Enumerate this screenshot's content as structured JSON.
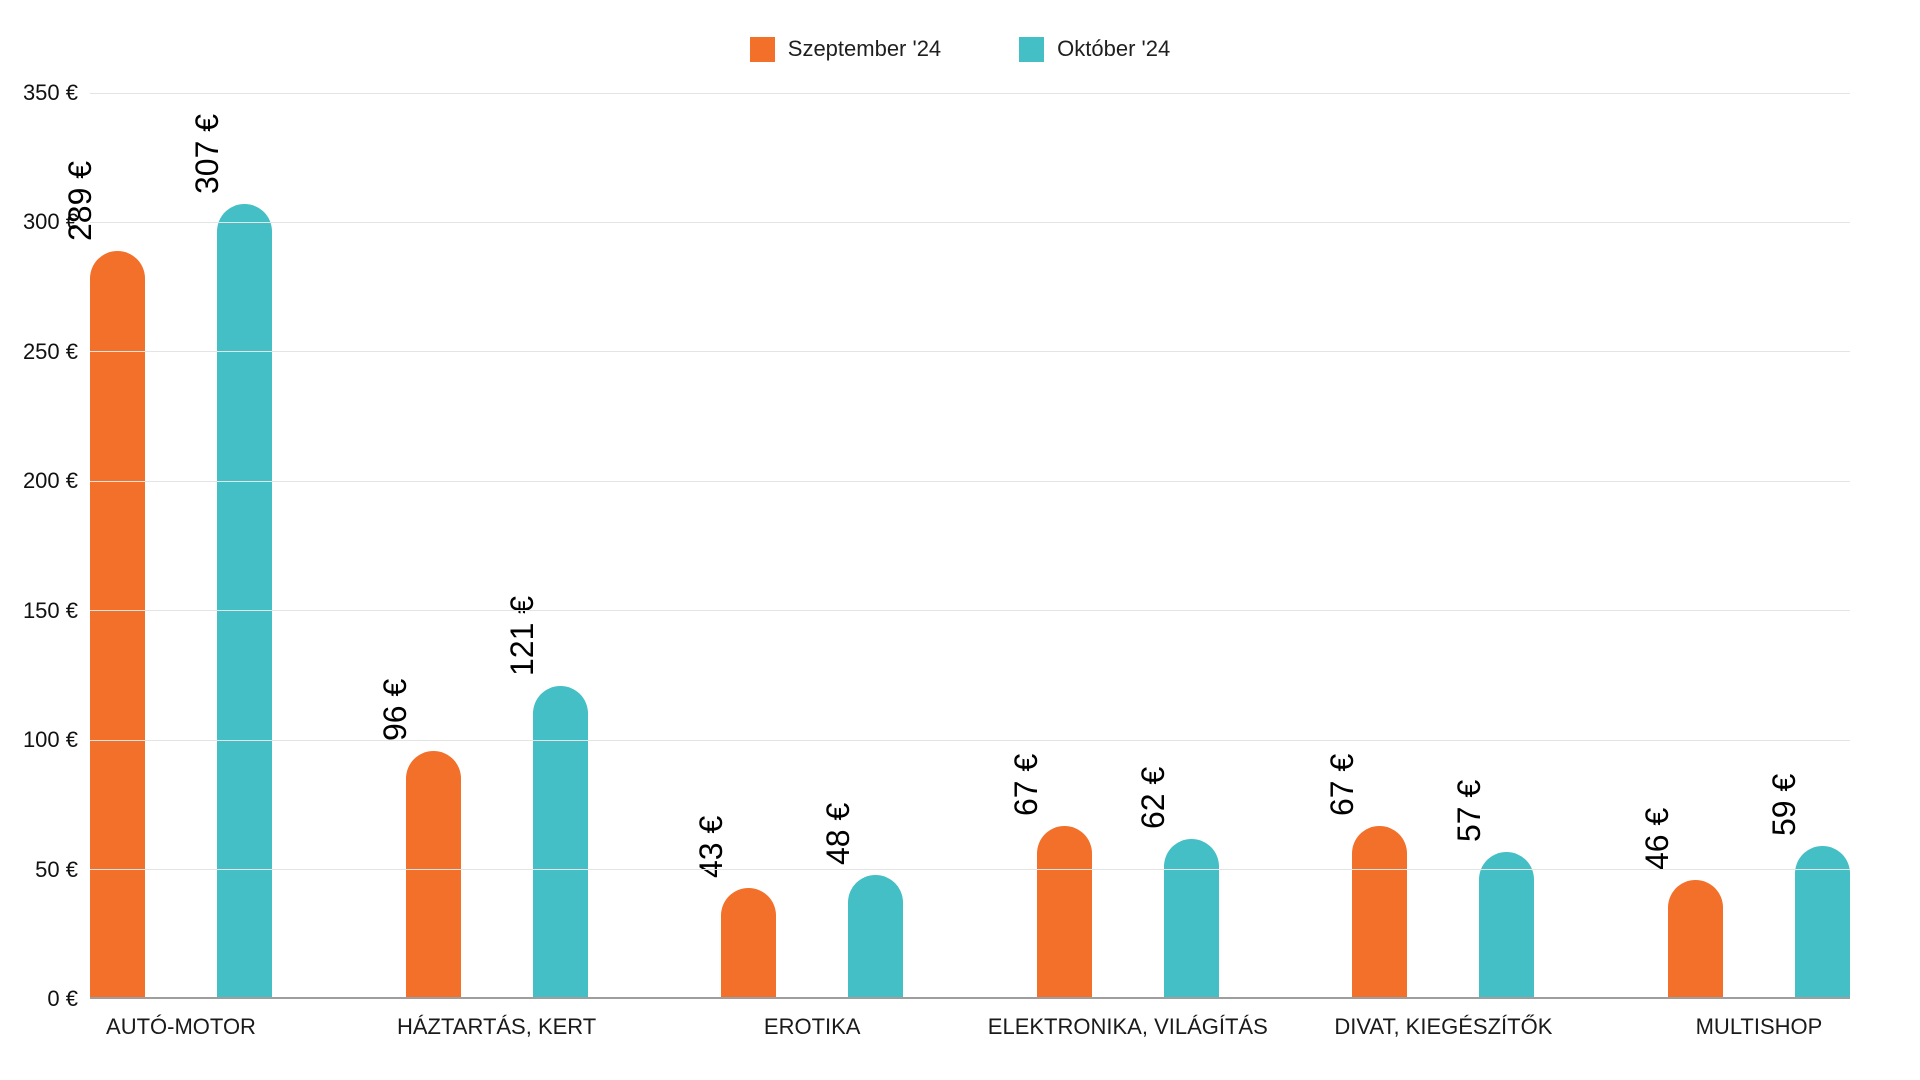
{
  "chart_data": {
    "type": "bar",
    "categories": [
      "AUTÓ-MOTOR",
      "HÁZTARTÁS, KERT",
      "EROTIKA",
      "ELEKTRONIKA, VILÁGÍTÁS",
      "DIVAT, KIEGÉSZÍTŐK",
      "MULTISHOP"
    ],
    "series": [
      {
        "name": "Szeptember '24",
        "color": "#F2702A",
        "values": [
          289,
          96,
          43,
          67,
          67,
          46
        ]
      },
      {
        "name": "Október '24",
        "color": "#44BFC5",
        "values": [
          307,
          121,
          48,
          62,
          57,
          59
        ]
      }
    ],
    "data_label_format": "{value} €",
    "data_label_rotation": -90,
    "yticks": [
      "0 €",
      "50 €",
      "100 €",
      "150 €",
      "200 €",
      "250 €",
      "300 €",
      "350 €"
    ],
    "ylim": [
      0,
      350
    ],
    "ytick_step": 50,
    "grid": true,
    "legend_position": "top-center",
    "title": "",
    "xlabel": "",
    "ylabel": ""
  },
  "legend": {
    "items": [
      {
        "label": "Szeptember '24",
        "color": "#F2702A"
      },
      {
        "label": "Október '24",
        "color": "#44BFC5"
      }
    ]
  },
  "style_colors": {
    "background": "#ffffff",
    "gridline": "#e4e4e4",
    "baseline": "#9e9e9e",
    "text": "#000000"
  }
}
